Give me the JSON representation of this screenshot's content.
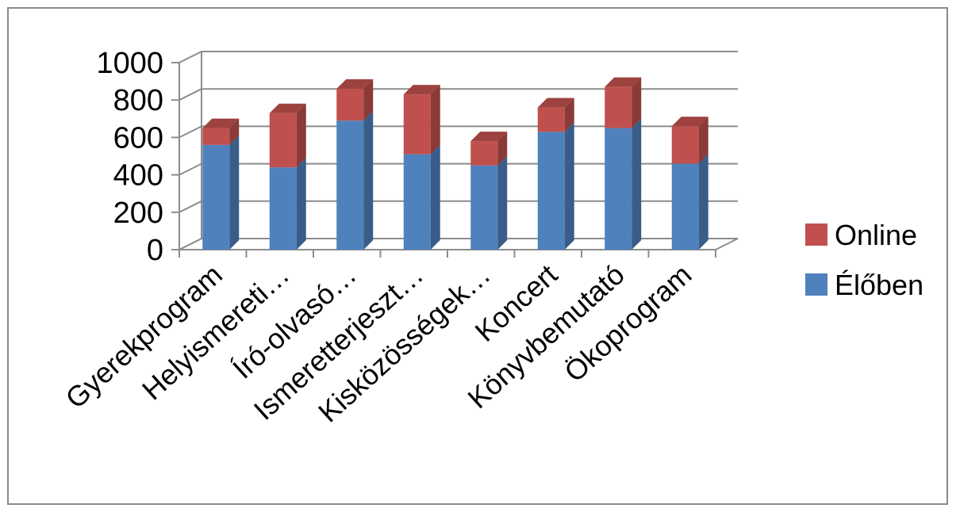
{
  "chart_data": {
    "type": "bar",
    "stacked": true,
    "three_d": true,
    "categories": [
      "Gyerekprogram",
      "Helyismereti…",
      "Író-olvasó…",
      "Ismeretterjeszt…",
      "Kisközösségek…",
      "Koncert",
      "Könyvbemutató",
      "Ökoprogram"
    ],
    "series": [
      {
        "name": "Élőben",
        "color": "#4F81BD",
        "values": [
          560,
          440,
          690,
          510,
          450,
          630,
          650,
          460
        ]
      },
      {
        "name": "Online",
        "color": "#C0504D",
        "values": [
          90,
          290,
          170,
          320,
          130,
          130,
          220,
          200
        ]
      }
    ],
    "y_ticks": [
      "0",
      "200",
      "400",
      "600",
      "800",
      "1000"
    ],
    "ylim": [
      0,
      1000
    ],
    "grid": true,
    "legend_position": "right",
    "legend_order": [
      "Online",
      "Élőben"
    ]
  }
}
